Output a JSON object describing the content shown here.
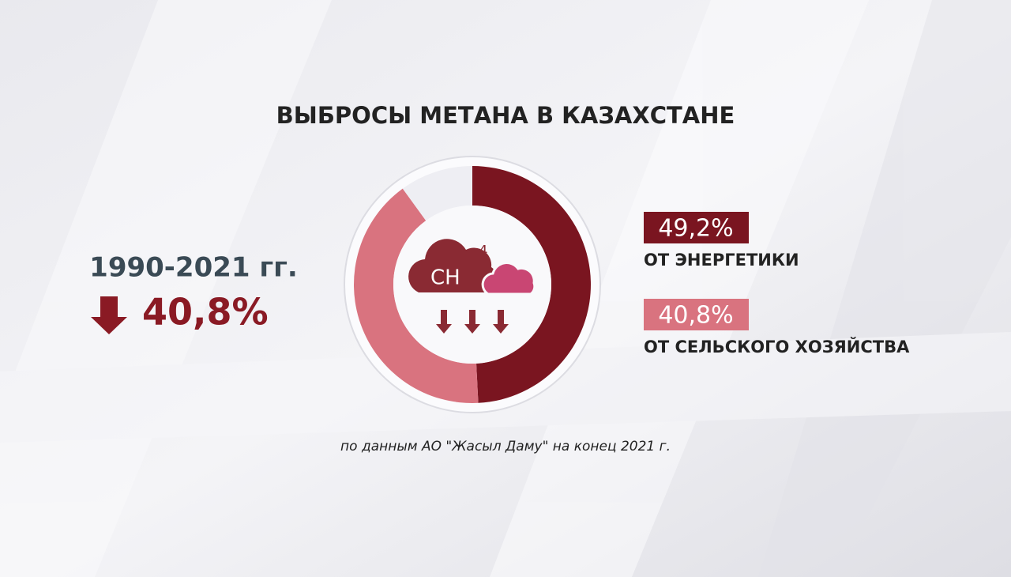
{
  "chart_data": {
    "type": "pie",
    "donut": true,
    "title": "ВЫБРОСЫ МЕТАНА В КАЗАХСТАНЕ",
    "categories": [
      "ОТ ЭНЕРГЕТИКИ",
      "ОТ СЕЛЬСКОГО ХОЗЯЙСТВА",
      null
    ],
    "values": [
      49.2,
      40.8,
      10
    ],
    "value_labels": [
      "49,2%",
      "40,8%",
      null
    ],
    "colors": [
      "#7a1520",
      "#d9737f",
      "#eeeef3"
    ]
  },
  "annotations": {
    "period": "1990-2021 гг.",
    "change": "40,8%",
    "source": "по данным АО \"Жасыл Даму\" на конец 2021 г."
  },
  "icon": {
    "text": "CH",
    "subscript": "4"
  }
}
